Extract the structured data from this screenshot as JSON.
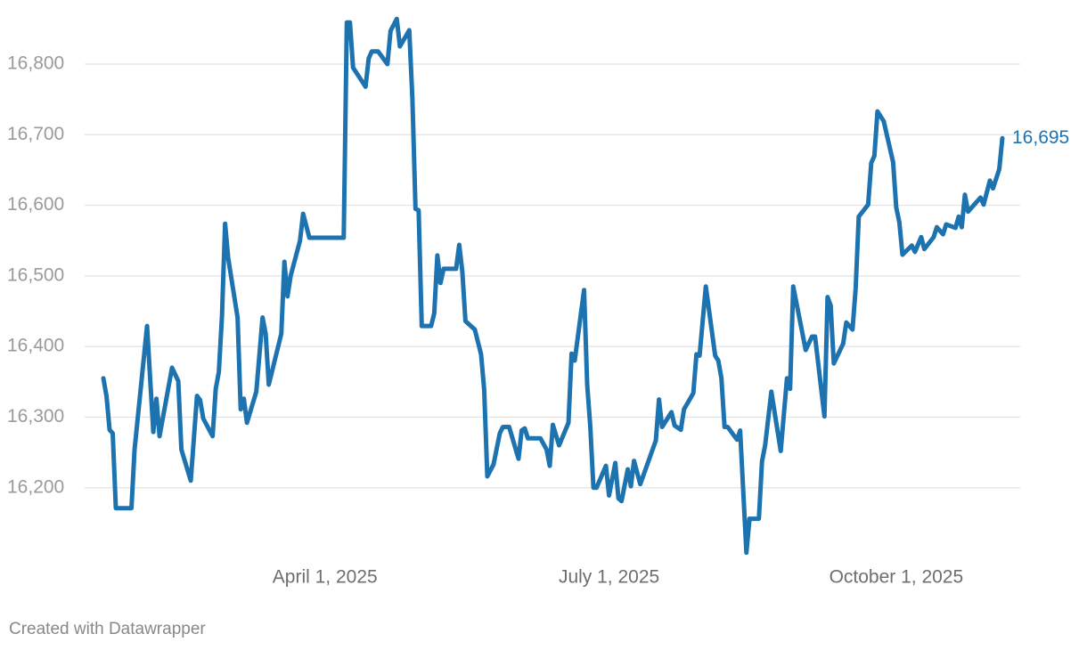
{
  "chart_data": {
    "type": "line",
    "credit": "Created with Datawrapper",
    "end_label": "16,695",
    "xlim": [
      "2025-01-20",
      "2025-11-04"
    ],
    "xticks": [
      {
        "value": "2025-04-01",
        "label": "April 1, 2025"
      },
      {
        "value": "2025-07-01",
        "label": "July 1, 2025"
      },
      {
        "value": "2025-10-01",
        "label": "October 1, 2025"
      }
    ],
    "ylim": [
      16100,
      16870
    ],
    "yticks": [
      {
        "value": 16200,
        "label": "16,200"
      },
      {
        "value": 16300,
        "label": "16,300"
      },
      {
        "value": 16400,
        "label": "16,400"
      },
      {
        "value": 16500,
        "label": "16,500"
      },
      {
        "value": 16600,
        "label": "16,600"
      },
      {
        "value": 16700,
        "label": "16,700"
      },
      {
        "value": 16800,
        "label": "16,800"
      }
    ],
    "grid": true,
    "x": [
      "2025-01-20",
      "2025-01-21",
      "2025-01-22",
      "2025-01-23",
      "2025-01-24",
      "2025-01-29",
      "2025-01-30",
      "2025-02-03",
      "2025-02-05",
      "2025-02-06",
      "2025-02-07",
      "2025-02-11",
      "2025-02-13",
      "2025-02-14",
      "2025-02-17",
      "2025-02-19",
      "2025-02-20",
      "2025-02-21",
      "2025-02-24",
      "2025-02-25",
      "2025-02-26",
      "2025-02-27",
      "2025-02-28",
      "2025-03-01",
      "2025-03-04",
      "2025-03-05",
      "2025-03-06",
      "2025-03-07",
      "2025-03-10",
      "2025-03-12",
      "2025-03-13",
      "2025-03-14",
      "2025-03-18",
      "2025-03-19",
      "2025-03-20",
      "2025-03-21",
      "2025-03-24",
      "2025-03-25",
      "2025-03-27",
      "2025-04-07",
      "2025-04-08",
      "2025-04-09",
      "2025-04-10",
      "2025-04-14",
      "2025-04-15",
      "2025-04-16",
      "2025-04-18",
      "2025-04-21",
      "2025-04-22",
      "2025-04-24",
      "2025-04-25",
      "2025-04-28",
      "2025-04-29",
      "2025-04-30",
      "2025-05-01",
      "2025-05-02",
      "2025-05-05",
      "2025-05-06",
      "2025-05-07",
      "2025-05-08",
      "2025-05-09",
      "2025-05-13",
      "2025-05-14",
      "2025-05-15",
      "2025-05-16",
      "2025-05-19",
      "2025-05-21",
      "2025-05-22",
      "2025-05-23",
      "2025-05-25",
      "2025-05-27",
      "2025-05-28",
      "2025-05-30",
      "2025-06-02",
      "2025-06-03",
      "2025-06-04",
      "2025-06-05",
      "2025-06-09",
      "2025-06-11",
      "2025-06-12",
      "2025-06-13",
      "2025-06-15",
      "2025-06-18",
      "2025-06-19",
      "2025-06-20",
      "2025-06-23",
      "2025-06-24",
      "2025-06-25",
      "2025-06-26",
      "2025-06-27",
      "2025-06-30",
      "2025-07-01",
      "2025-07-03",
      "2025-07-04",
      "2025-07-05",
      "2025-07-07",
      "2025-07-08",
      "2025-07-09",
      "2025-07-11",
      "2025-07-16",
      "2025-07-17",
      "2025-07-18",
      "2025-07-21",
      "2025-07-22",
      "2025-07-24",
      "2025-07-25",
      "2025-07-28",
      "2025-07-29",
      "2025-07-30",
      "2025-08-01",
      "2025-08-04",
      "2025-08-05",
      "2025-08-06",
      "2025-08-07",
      "2025-08-08",
      "2025-08-11",
      "2025-08-12",
      "2025-08-14",
      "2025-08-15",
      "2025-08-18",
      "2025-08-19",
      "2025-08-20",
      "2025-08-22",
      "2025-08-25",
      "2025-08-27",
      "2025-08-28",
      "2025-08-29",
      "2025-09-02",
      "2025-09-04",
      "2025-09-05",
      "2025-09-08",
      "2025-09-09",
      "2025-09-10",
      "2025-09-11",
      "2025-09-14",
      "2025-09-15",
      "2025-09-17",
      "2025-09-18",
      "2025-09-19",
      "2025-09-22",
      "2025-09-23",
      "2025-09-24",
      "2025-09-25",
      "2025-09-27",
      "2025-09-30",
      "2025-10-01",
      "2025-10-02",
      "2025-10-03",
      "2025-10-06",
      "2025-10-07",
      "2025-10-09",
      "2025-10-10",
      "2025-10-13",
      "2025-10-14",
      "2025-10-16",
      "2025-10-17",
      "2025-10-20",
      "2025-10-21",
      "2025-10-22",
      "2025-10-23",
      "2025-10-24",
      "2025-10-28",
      "2025-10-29",
      "2025-10-31",
      "2025-11-01",
      "2025-11-03",
      "2025-11-04"
    ],
    "series": [
      {
        "color": "#1d72b0",
        "values": [
          16355,
          16330,
          16282,
          16277,
          16171,
          16171,
          16254,
          16429,
          16279,
          16326,
          16273,
          16370,
          16351,
          16254,
          16210,
          16330,
          16324,
          16298,
          16273,
          16340,
          16364,
          16443,
          16574,
          16525,
          16441,
          16311,
          16326,
          16292,
          16336,
          16441,
          16418,
          16346,
          16418,
          16520,
          16471,
          16500,
          16550,
          16588,
          16554,
          16554,
          16859,
          16859,
          16795,
          16768,
          16808,
          16818,
          16818,
          16800,
          16847,
          16864,
          16825,
          16848,
          16752,
          16595,
          16593,
          16429,
          16429,
          16447,
          16529,
          16490,
          16510,
          16510,
          16544,
          16506,
          16436,
          16424,
          16389,
          16339,
          16216,
          16233,
          16277,
          16286,
          16286,
          16241,
          16281,
          16284,
          16270,
          16270,
          16254,
          16231,
          16289,
          16260,
          16292,
          16390,
          16380,
          16480,
          16346,
          16286,
          16200,
          16200,
          16231,
          16189,
          16235,
          16185,
          16181,
          16226,
          16202,
          16238,
          16205,
          16267,
          16325,
          16286,
          16307,
          16288,
          16282,
          16311,
          16334,
          16389,
          16387,
          16485,
          16387,
          16380,
          16355,
          16286,
          16286,
          16268,
          16281,
          16108,
          16156,
          16156,
          16237,
          16260,
          16336,
          16252,
          16355,
          16340,
          16485,
          16395,
          16414,
          16414,
          16301,
          16470,
          16458,
          16376,
          16404,
          16434,
          16424,
          16482,
          16584,
          16601,
          16660,
          16670,
          16733,
          16719,
          16661,
          16597,
          16576,
          16530,
          16543,
          16534,
          16555,
          16538,
          16555,
          16569,
          16559,
          16573,
          16568,
          16584,
          16569,
          16615,
          16591,
          16611,
          16601,
          16635,
          16624,
          16651,
          16695
        ]
      }
    ]
  }
}
